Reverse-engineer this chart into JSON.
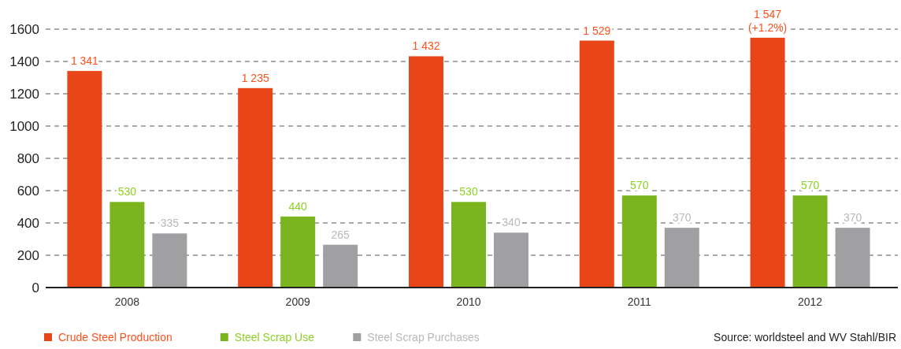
{
  "chart_data": {
    "type": "bar",
    "categories": [
      "2008",
      "2009",
      "2010",
      "2011",
      "2012"
    ],
    "series": [
      {
        "name": "Crude Steel Production",
        "color": "#e84518",
        "values": [
          1341,
          1235,
          1432,
          1529,
          1547
        ],
        "value_labels": [
          "1 341",
          "1 235",
          "1 432",
          "1 529",
          "1 547\n(+1.2%)"
        ]
      },
      {
        "name": "Steel Scrap Use",
        "color": "#7ab51f",
        "values": [
          530,
          440,
          530,
          570,
          570
        ],
        "value_labels": [
          "530",
          "440",
          "530",
          "570",
          "570"
        ]
      },
      {
        "name": "Steel Scrap Purchases",
        "color": "#a0a0a2",
        "values": [
          335,
          265,
          340,
          370,
          370
        ],
        "value_labels": [
          "335",
          "265",
          "340",
          "370",
          "370"
        ]
      }
    ],
    "ylim": [
      0,
      1600
    ],
    "yticks": [
      0,
      200,
      400,
      600,
      800,
      1000,
      1200,
      1400,
      1600
    ],
    "grid": "y",
    "legend": "bottom left",
    "annotations": [
      "Source: worldsteel and WV Stahl/BIR"
    ]
  }
}
